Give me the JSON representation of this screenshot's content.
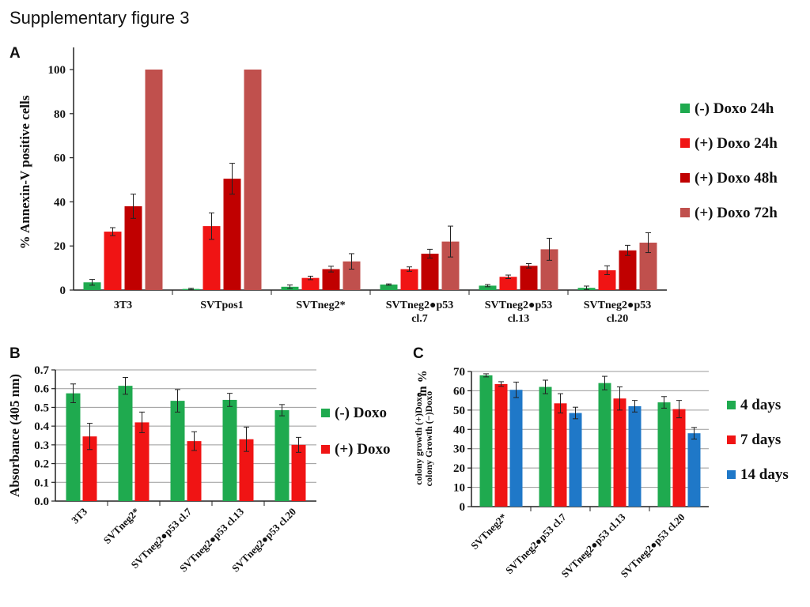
{
  "figure_title": "Supplementary figure 3",
  "colors": {
    "green": "#1faa4f",
    "red": "#f01414",
    "darkred": "#c00000",
    "rose": "#c0504d",
    "blue": "#1f78c8"
  },
  "chart_data": [
    {
      "panel": "A",
      "type": "bar",
      "ylabel": "% Annexin-V positive cells",
      "ylim": [
        0,
        100
      ],
      "yticks": [
        0,
        20,
        40,
        60,
        80,
        100
      ],
      "grid": false,
      "legend_position": "right",
      "categories": [
        "3T3",
        "SVTpos1",
        "SVTneg2*",
        "SVTneg2●p53\ncl.7",
        "SVTneg2●p53\ncl.13",
        "SVTneg2●p53\ncl.20"
      ],
      "series": [
        {
          "name": "(-) Doxo 24h",
          "color": "#1faa4f",
          "values": [
            3.5,
            0.5,
            1.5,
            2.5,
            2,
            1
          ],
          "errors": [
            1.3,
            0.3,
            0.8,
            0.3,
            0.5,
            0.8
          ]
        },
        {
          "name": "(+) Doxo 24h",
          "color": "#f01414",
          "values": [
            26.5,
            29,
            5.5,
            9.5,
            6,
            9
          ],
          "errors": [
            1.8,
            6,
            0.8,
            1,
            0.8,
            2
          ]
        },
        {
          "name": "(+) Doxo 48h",
          "color": "#c00000",
          "values": [
            38,
            50.5,
            9.5,
            16.5,
            11,
            18
          ],
          "errors": [
            5.5,
            7,
            1.3,
            2,
            1,
            2.3
          ]
        },
        {
          "name": "(+) Doxo 72h",
          "color": "#c0504d",
          "values": [
            100,
            100,
            13,
            22,
            18.5,
            21.5
          ],
          "errors": [
            0,
            0,
            3.5,
            7,
            5,
            4.5
          ]
        }
      ]
    },
    {
      "panel": "B",
      "type": "bar",
      "ylabel": "Absorbance (405 nm)",
      "ylim": [
        0,
        0.7
      ],
      "yticks": [
        "0.0",
        "0.1",
        "0.2",
        "0.3",
        "0.4",
        "0.5",
        "0.6",
        "0.7"
      ],
      "grid": true,
      "legend_position": "right",
      "categories": [
        "3T3",
        "SVTneg2*",
        "SVTneg2●p53 cl.7",
        "SVTneg2●p53 cl.13",
        "SVTneg2●p53 cl.20"
      ],
      "series": [
        {
          "name": "(-) Doxo",
          "color": "#1faa4f",
          "values": [
            0.575,
            0.615,
            0.535,
            0.54,
            0.485
          ],
          "errors": [
            0.05,
            0.045,
            0.06,
            0.035,
            0.03
          ]
        },
        {
          "name": "(+) Doxo",
          "color": "#f01414",
          "values": [
            0.345,
            0.42,
            0.32,
            0.33,
            0.3
          ],
          "errors": [
            0.07,
            0.055,
            0.05,
            0.065,
            0.04
          ]
        }
      ]
    },
    {
      "panel": "C",
      "type": "bar",
      "ylabel_line1": "colony growth (+)Doxo",
      "ylabel_line2": "colony Growth (−)Doxo",
      "ylabel_suffix": "in %",
      "ylim": [
        0,
        70
      ],
      "yticks": [
        0,
        10,
        20,
        30,
        40,
        50,
        60,
        70
      ],
      "grid": true,
      "legend_position": "right",
      "categories": [
        "SVTneg2*",
        "SVTneg2●p53 cl.7",
        "SVTneg2●p53 cl.13",
        "SVTneg2●p53 cl.20"
      ],
      "series": [
        {
          "name": "4 days",
          "color": "#1faa4f",
          "values": [
            68,
            62,
            64,
            54
          ],
          "errors": [
            0.8,
            3.5,
            3.5,
            3
          ]
        },
        {
          "name": "7 days",
          "color": "#f01414",
          "values": [
            63.5,
            53.5,
            56,
            50.5
          ],
          "errors": [
            1.2,
            5,
            6,
            4.5
          ]
        },
        {
          "name": "14 days",
          "color": "#1f78c8",
          "values": [
            60.5,
            48.5,
            52,
            38
          ],
          "errors": [
            4,
            3,
            3,
            3
          ]
        }
      ]
    }
  ]
}
